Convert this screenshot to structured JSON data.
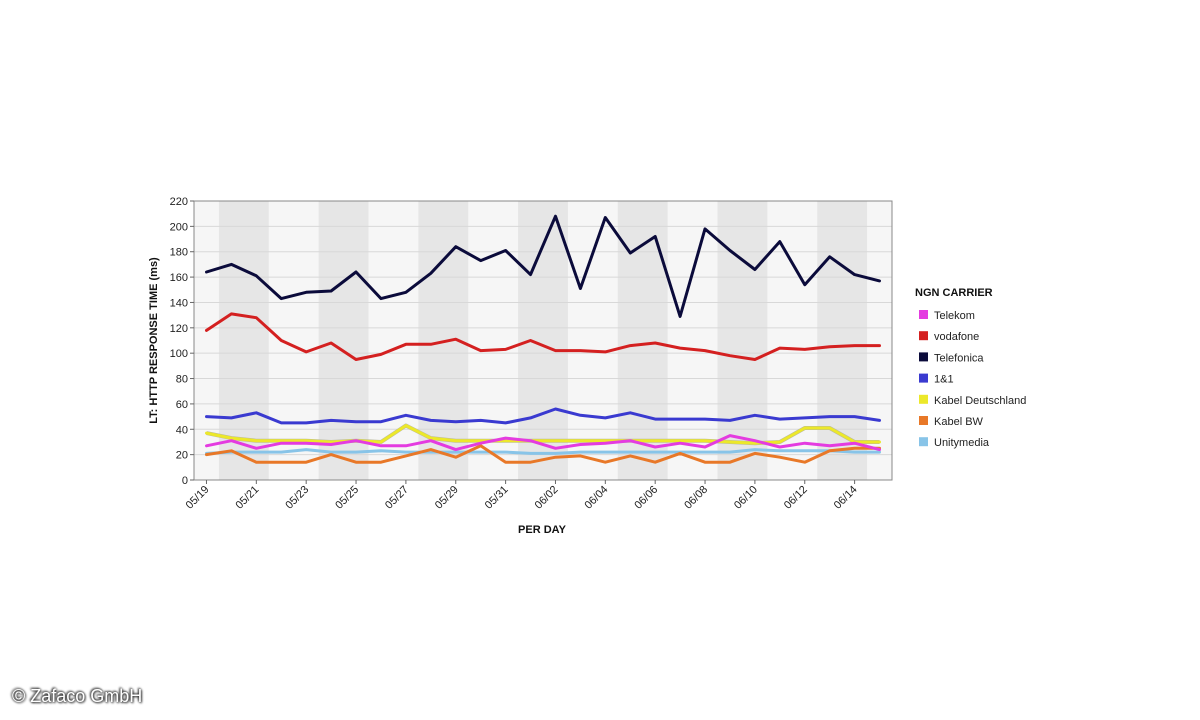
{
  "chart_data": {
    "type": "line",
    "title": "",
    "xlabel": "PER DAY",
    "ylabel": "LT: HTTP RESPONSE TIME (ms)",
    "ylim": [
      0,
      220
    ],
    "yticks": [
      0,
      20,
      40,
      60,
      80,
      100,
      120,
      140,
      160,
      180,
      200,
      220
    ],
    "grid": true,
    "legend_title": "NGN CARRIER",
    "legend_position": "right",
    "x": [
      "05/19",
      "05/20",
      "05/21",
      "05/22",
      "05/23",
      "05/24",
      "05/25",
      "05/26",
      "05/27",
      "05/28",
      "05/29",
      "05/30",
      "05/31",
      "06/01",
      "06/02",
      "06/03",
      "06/04",
      "06/05",
      "06/06",
      "06/07",
      "06/08",
      "06/09",
      "06/10",
      "06/11",
      "06/12",
      "06/13",
      "06/14",
      "06/15"
    ],
    "x_tick_labels": [
      "05/19",
      "05/21",
      "05/23",
      "05/25",
      "05/27",
      "05/29",
      "05/31",
      "06/02",
      "06/04",
      "06/06",
      "06/08",
      "06/10",
      "06/12",
      "06/14"
    ],
    "series": [
      {
        "name": "Telekom",
        "color": "#e43be0",
        "values": [
          27,
          31,
          25,
          29,
          29,
          28,
          31,
          27,
          27,
          31,
          24,
          29,
          33,
          31,
          25,
          28,
          29,
          31,
          26,
          29,
          26,
          35,
          31,
          26,
          29,
          27,
          29,
          24
        ]
      },
      {
        "name": "vodafone",
        "color": "#d42020",
        "values": [
          118,
          131,
          128,
          110,
          101,
          108,
          95,
          99,
          107,
          107,
          111,
          102,
          103,
          110,
          102,
          102,
          101,
          106,
          108,
          104,
          102,
          98,
          95,
          104,
          103,
          105,
          106,
          106
        ]
      },
      {
        "name": "Telefonica",
        "color": "#0b0b3b",
        "values": [
          164,
          170,
          161,
          143,
          148,
          149,
          164,
          143,
          148,
          163,
          184,
          173,
          181,
          162,
          208,
          151,
          207,
          179,
          192,
          129,
          198,
          181,
          166,
          188,
          154,
          176,
          162,
          157
        ]
      },
      {
        "name": "1&1",
        "color": "#3a3ad0",
        "values": [
          50,
          49,
          53,
          45,
          45,
          47,
          46,
          46,
          51,
          47,
          46,
          47,
          45,
          49,
          56,
          51,
          49,
          53,
          48,
          48,
          48,
          47,
          51,
          48,
          49,
          50,
          50,
          47
        ]
      },
      {
        "name": "Kabel Deutschland",
        "color": "#ece82a",
        "values": [
          37,
          33,
          31,
          31,
          31,
          30,
          31,
          30,
          43,
          33,
          31,
          31,
          31,
          31,
          31,
          31,
          31,
          31,
          31,
          31,
          31,
          30,
          29,
          30,
          41,
          41,
          30,
          30
        ]
      },
      {
        "name": "Kabel BW",
        "color": "#e87828",
        "values": [
          20,
          23,
          14,
          14,
          14,
          20,
          14,
          14,
          19,
          24,
          18,
          27,
          14,
          14,
          18,
          19,
          14,
          19,
          14,
          21,
          14,
          14,
          21,
          18,
          14,
          23,
          25,
          25
        ]
      },
      {
        "name": "Unitymedia",
        "color": "#88c4e8",
        "values": [
          21,
          22,
          22,
          22,
          24,
          22,
          22,
          23,
          22,
          22,
          22,
          22,
          22,
          21,
          21,
          22,
          22,
          22,
          22,
          22,
          22,
          22,
          24,
          23,
          23,
          23,
          22,
          22
        ]
      }
    ]
  },
  "watermark": "© Zafaco GmbH"
}
